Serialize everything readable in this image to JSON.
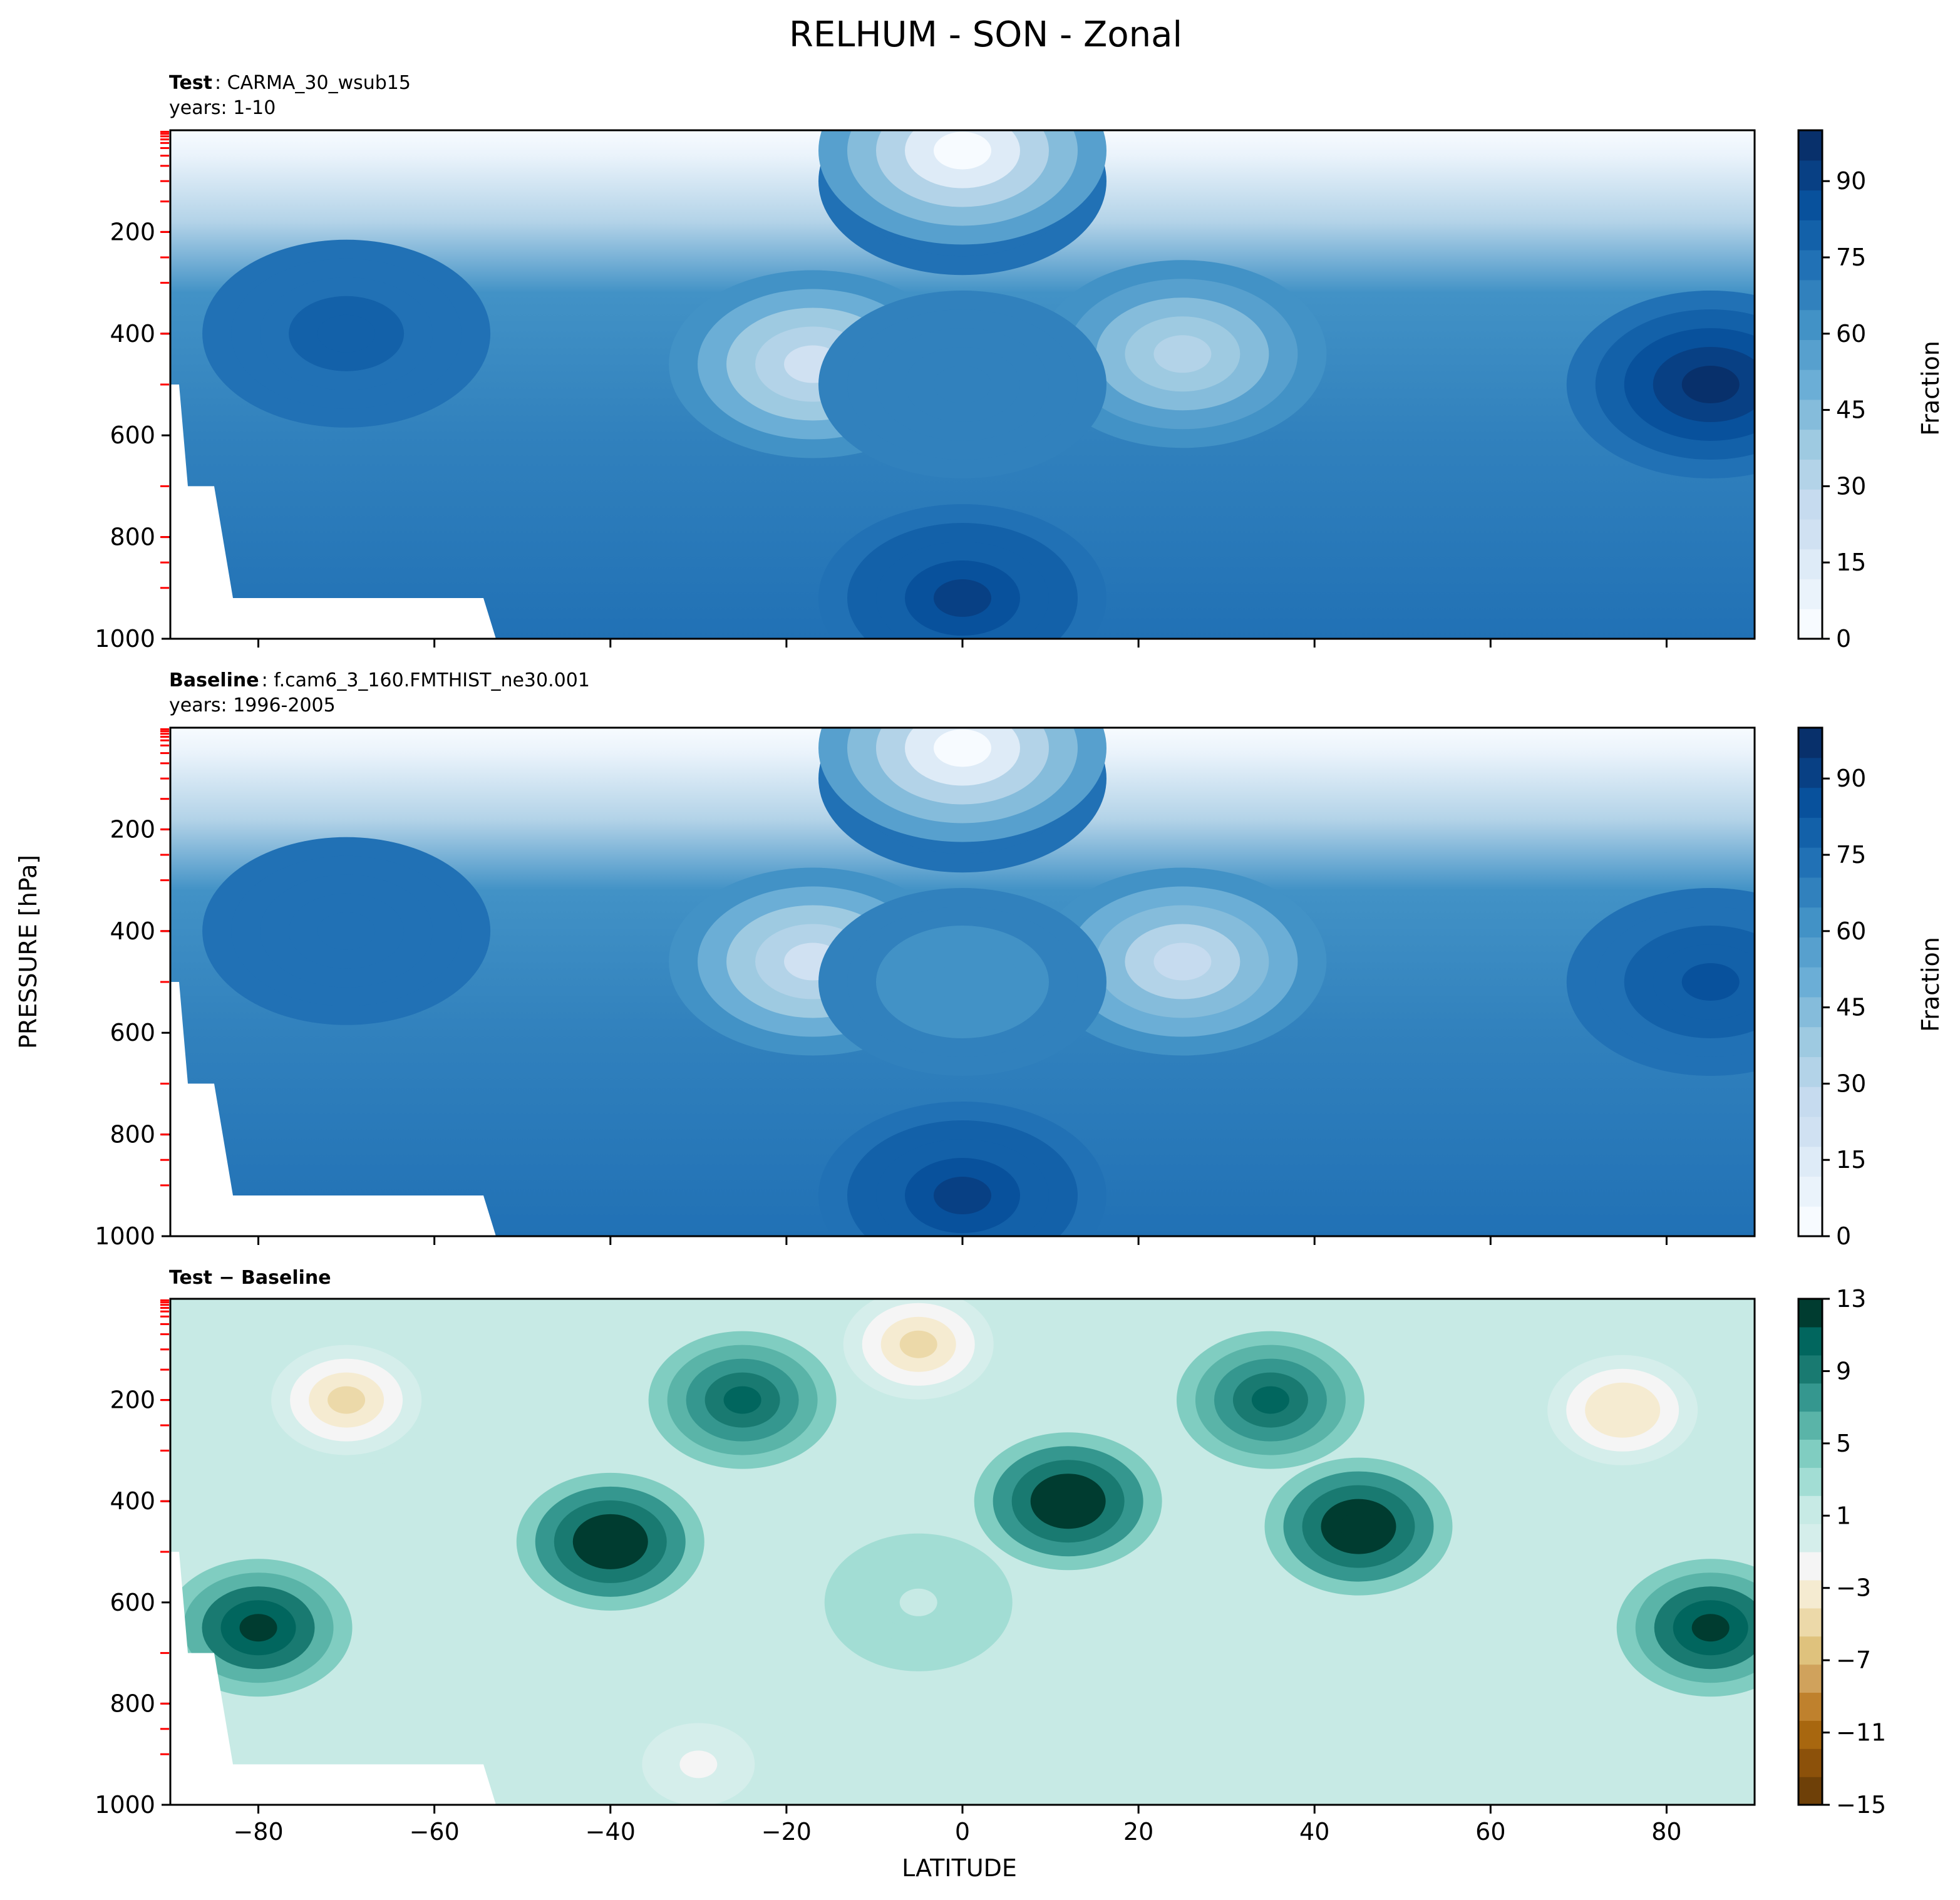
{
  "figure": {
    "title": "RELHUM - SON - Zonal",
    "ylabel": "PRESSURE [hPa]",
    "xlabel": "LATITUDE"
  },
  "panels": [
    {
      "name_bold": "Test",
      "name_rest": ": CARMA_30_wsub15",
      "years": "years: 1-10",
      "colorbar_label": "Fraction",
      "colorbar_ticks": [
        "0",
        "15",
        "30",
        "45",
        "60",
        "75",
        "90"
      ]
    },
    {
      "name_bold": "Baseline",
      "name_rest": ": f.cam6_3_160.FMTHIST_ne30.001",
      "years": "years: 1996-2005",
      "colorbar_label": "Fraction",
      "colorbar_ticks": [
        "0",
        "15",
        "30",
        "45",
        "60",
        "75",
        "90"
      ]
    },
    {
      "name_bold": "Test − Baseline",
      "name_rest": "",
      "years": "",
      "colorbar_label": "",
      "colorbar_ticks": [
        "−15",
        "−11",
        "−7",
        "−3",
        "1",
        "5",
        "9",
        "13"
      ]
    }
  ],
  "chart_data": {
    "type": "heatmap",
    "x_axis": {
      "label": "LATITUDE",
      "range": [
        -90,
        90
      ],
      "ticks": [
        "−80",
        "−60",
        "−40",
        "−20",
        "0",
        "20",
        "40",
        "60",
        "80"
      ]
    },
    "y_axis": {
      "label": "PRESSURE [hPa]",
      "range": [
        0,
        1000
      ],
      "inverted": true,
      "ticks": [
        "200",
        "400",
        "600",
        "800",
        "1000"
      ]
    },
    "panels": [
      {
        "panel": "Test",
        "colormap": "Blues",
        "colorbar": {
          "label": "Fraction",
          "range": [
            0,
            100
          ],
          "ticks": [
            0,
            15,
            30,
            45,
            60,
            75,
            90
          ]
        },
        "features": [
          {
            "lat": 0,
            "p": 100,
            "value": 80
          },
          {
            "lat": -17,
            "p": 460,
            "value": 20
          },
          {
            "lat": 25,
            "p": 440,
            "value": 30
          },
          {
            "lat": 0,
            "p": 500,
            "value": 70
          },
          {
            "lat": 0,
            "p": 920,
            "value": 90
          },
          {
            "lat": -70,
            "p": 400,
            "value": 80
          },
          {
            "lat": 85,
            "p": 500,
            "value": 95
          },
          {
            "lat": 0,
            "p": 40,
            "value": 3
          }
        ]
      },
      {
        "panel": "Baseline",
        "colormap": "Blues",
        "colorbar": {
          "label": "Fraction",
          "range": [
            0,
            100
          ],
          "ticks": [
            0,
            15,
            30,
            45,
            60,
            75,
            90
          ]
        },
        "features": [
          {
            "lat": 0,
            "p": 100,
            "value": 85
          },
          {
            "lat": -17,
            "p": 460,
            "value": 20
          },
          {
            "lat": 25,
            "p": 460,
            "value": 25
          },
          {
            "lat": 0,
            "p": 500,
            "value": 60
          },
          {
            "lat": 0,
            "p": 920,
            "value": 90
          },
          {
            "lat": -70,
            "p": 400,
            "value": 75
          },
          {
            "lat": 85,
            "p": 500,
            "value": 85
          },
          {
            "lat": 0,
            "p": 40,
            "value": 3
          }
        ]
      },
      {
        "panel": "Test − Baseline",
        "colormap": "BrBG",
        "colorbar": {
          "label": "",
          "range": [
            -15,
            13
          ],
          "ticks": [
            -15,
            -11,
            -7,
            -3,
            1,
            5,
            9,
            13
          ]
        },
        "features": [
          {
            "lat": -40,
            "p": 480,
            "value": 14
          },
          {
            "lat": 12,
            "p": 400,
            "value": 14
          },
          {
            "lat": 45,
            "p": 450,
            "value": 14
          },
          {
            "lat": 85,
            "p": 650,
            "value": 12
          },
          {
            "lat": -80,
            "p": 650,
            "value": 12
          },
          {
            "lat": -25,
            "p": 200,
            "value": 11
          },
          {
            "lat": 35,
            "p": 200,
            "value": 11
          },
          {
            "lat": -70,
            "p": 200,
            "value": -5
          },
          {
            "lat": -5,
            "p": 90,
            "value": -5
          },
          {
            "lat": 75,
            "p": 220,
            "value": -4
          },
          {
            "lat": -30,
            "p": 920,
            "value": -2
          },
          {
            "lat": -5,
            "p": 600,
            "value": 2
          }
        ]
      }
    ]
  }
}
